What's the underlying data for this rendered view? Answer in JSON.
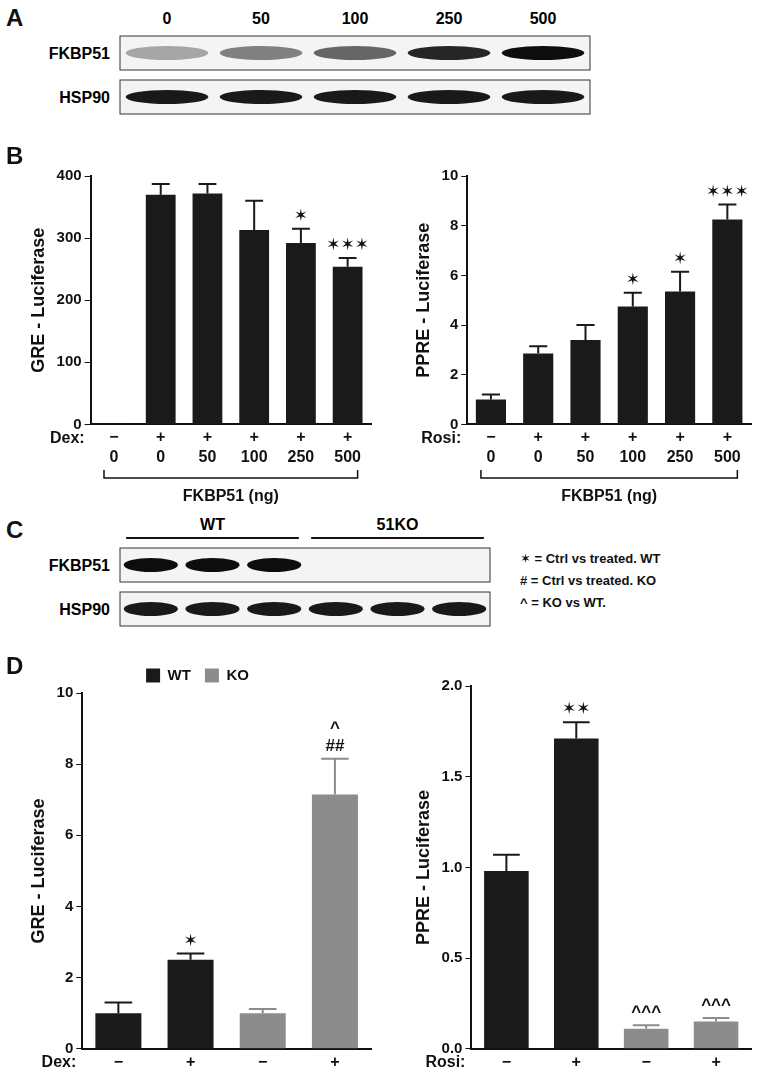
{
  "chart_data": [
    {
      "panel": "B",
      "type": "bar",
      "y_label": "GRE - Luciferase",
      "group_label": "Dex:",
      "x_label": "FKBP51 (ng)",
      "categories": [
        [
          "−",
          "0"
        ],
        [
          "+",
          "0"
        ],
        [
          "+",
          "50"
        ],
        [
          "+",
          "100"
        ],
        [
          "+",
          "250"
        ],
        [
          "+",
          "500"
        ]
      ],
      "values": [
        1,
        370,
        372,
        313,
        292,
        254
      ],
      "errors": [
        0,
        17,
        15,
        47,
        23,
        14
      ],
      "significance": [
        null,
        null,
        null,
        null,
        "✶",
        "✶✶✶"
      ],
      "color": "#1a1a1a",
      "ylim": [
        0,
        400
      ],
      "yticks": [
        0,
        100,
        200,
        300,
        400
      ],
      "grid": false
    },
    {
      "type": "bar",
      "y_label": "PPRE - Luciferase",
      "group_label": "Rosi:",
      "x_label": "FKBP51 (ng)",
      "categories": [
        [
          "−",
          "0"
        ],
        [
          "+",
          "0"
        ],
        [
          "+",
          "50"
        ],
        [
          "+",
          "100"
        ],
        [
          "+",
          "250"
        ],
        [
          "+",
          "500"
        ]
      ],
      "values": [
        1.0,
        2.85,
        3.4,
        4.75,
        5.35,
        8.25
      ],
      "errors": [
        0.2,
        0.3,
        0.6,
        0.55,
        0.8,
        0.6
      ],
      "significance": [
        null,
        null,
        null,
        "✶",
        "✶",
        "✶✶✶"
      ],
      "color": "#1a1a1a",
      "ylim": [
        0,
        10
      ],
      "yticks": [
        0,
        2,
        4,
        6,
        8,
        10
      ],
      "grid": false
    },
    {
      "panel": "D",
      "type": "bar",
      "y_label": "GRE - Luciferase",
      "group_label": "Dex:",
      "categories": [
        "−",
        "+",
        "−",
        "+"
      ],
      "series": [
        {
          "name": "WT",
          "color": "#1a1a1a",
          "values": [
            1.0,
            2.5,
            null,
            null
          ],
          "errors": [
            0.3,
            0.18,
            null,
            null
          ],
          "significance": [
            null,
            [
              "✶"
            ],
            null,
            null
          ]
        },
        {
          "name": "KO",
          "color": "#8c8c8c",
          "values": [
            null,
            null,
            1.0,
            7.15
          ],
          "errors": [
            null,
            null,
            0.12,
            1.0
          ],
          "significance": [
            null,
            null,
            null,
            [
              "^",
              "##"
            ]
          ]
        }
      ],
      "ylim": [
        0,
        10
      ],
      "yticks": [
        0,
        2,
        4,
        6,
        8,
        10
      ],
      "grid": false,
      "legend": "top"
    },
    {
      "type": "bar",
      "y_label": "PPRE - Luciferase",
      "group_label": "Rosi:",
      "categories": [
        "−",
        "+",
        "−",
        "+"
      ],
      "series": [
        {
          "name": "WT",
          "color": "#1a1a1a",
          "values": [
            0.98,
            1.71,
            null,
            null
          ],
          "errors": [
            0.09,
            0.09,
            null,
            null
          ],
          "significance": [
            null,
            [
              "✶✶"
            ],
            null,
            null
          ]
        },
        {
          "name": "KO",
          "color": "#8c8c8c",
          "values": [
            null,
            null,
            0.11,
            0.15
          ],
          "errors": [
            null,
            null,
            0.02,
            0.02
          ],
          "significance": [
            null,
            null,
            [
              "^^^"
            ],
            [
              "^^^"
            ]
          ]
        }
      ],
      "ylim": [
        0,
        2
      ],
      "yticks": [
        {
          "value": 0,
          "label": "0.0"
        },
        0.5,
        {
          "value": 1,
          "label": "1.0"
        },
        1.5,
        {
          "value": 2,
          "label": "2.0"
        }
      ],
      "grid": false
    }
  ],
  "blots": [
    {
      "panel": "A",
      "lane_labels": [
        "0",
        "50",
        "100",
        "250",
        "500"
      ],
      "rows": [
        {
          "label": "FKBP51",
          "band_intensity": [
            0.35,
            0.5,
            0.6,
            0.85,
            0.95
          ]
        },
        {
          "label": "HSP90",
          "band_intensity": [
            0.9,
            0.9,
            0.9,
            0.9,
            0.9
          ]
        }
      ]
    },
    {
      "panel": "C",
      "groups": [
        {
          "label": "WT",
          "lanes": 3
        },
        {
          "label": "51KO",
          "lanes": 3
        }
      ],
      "rows": [
        {
          "label": "FKBP51",
          "band_intensity": [
            0.95,
            0.95,
            0.95,
            0,
            0,
            0
          ]
        },
        {
          "label": "HSP90",
          "band_intensity": [
            0.9,
            0.9,
            0.9,
            0.9,
            0.9,
            0.9
          ]
        }
      ]
    }
  ],
  "notes": [
    "✶ = Ctrl vs treated. WT",
    "# = Ctrl vs treated. KO",
    "^ = KO vs WT."
  ]
}
